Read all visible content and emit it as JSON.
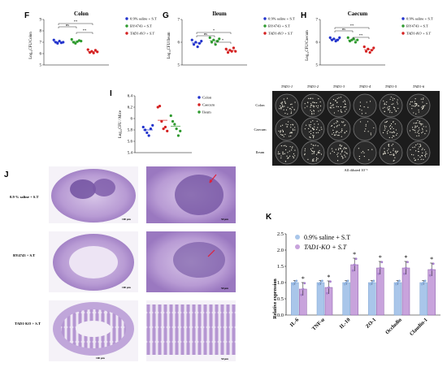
{
  "panels": {
    "F": {
      "label": "F",
      "title": "Colon",
      "ylabel": "Log₁₀CFU/Colon"
    },
    "G": {
      "label": "G",
      "title": "Ileum",
      "ylabel": "Log₁₀CFU/Ileum"
    },
    "H": {
      "label": "H",
      "title": "Caecum",
      "ylabel": "Log₁₀CFU/Caecum"
    },
    "I": {
      "label": "I",
      "ylabel": "Log₁₀CFU / Mice"
    },
    "J": {
      "label": "J"
    },
    "K": {
      "label": "K",
      "ylabel": "Relative expression"
    }
  },
  "legend_groups": [
    "0.9% saline + S.T",
    "BY4743 + S.T",
    "TAD1-KO + S.T"
  ],
  "legend_tissues": [
    "Colon",
    "Caecum",
    "Ileum"
  ],
  "legend_k": [
    "0.9% saline + S.T",
    "TAD1-KO + S.T"
  ],
  "significance": {
    "ns": "ns",
    "star": "*",
    "star2": "**"
  },
  "plates": {
    "columns": [
      "TAD1-1",
      "TAD1-2",
      "TAD1-3",
      "TAD1-4",
      "TAD1-5",
      "TAD1-6"
    ],
    "rows": [
      "Colon",
      "Caecum",
      "Ileum"
    ],
    "caption": "All diluted 10⁻¹"
  },
  "histology": {
    "rows": [
      "0.9 % saline + S.T",
      "BY4743 + S.T",
      "TAD1-KO + S.T"
    ],
    "scale_left": "100 μm",
    "scale_right": "50 μm"
  },
  "colors": {
    "saline": "#2233cc",
    "by4743": "#2e9a2e",
    "ko": "#d42020",
    "bar_saline": "#a9c6ea",
    "bar_ko": "#c8a3dc",
    "tissue": "#a98bc9"
  },
  "chart_data": [
    {
      "panel": "F",
      "type": "scatter",
      "title": "Colon",
      "ylabel": "Log₁₀CFU/Colon",
      "ylim": [
        5,
        9
      ],
      "yticks": [
        5,
        6,
        7,
        8,
        9
      ],
      "series": [
        {
          "name": "0.9% saline + S.T",
          "values": [
            7.2,
            7.0,
            6.9,
            7.1,
            6.95,
            7.0
          ]
        },
        {
          "name": "BY4743 + S.T",
          "values": [
            7.25,
            7.0,
            6.9,
            7.05,
            7.15,
            7.1
          ]
        },
        {
          "name": "TAD1-KO + S.T",
          "values": [
            6.35,
            6.1,
            6.2,
            6.05,
            6.3,
            6.15
          ]
        }
      ]
    },
    {
      "panel": "G",
      "type": "scatter",
      "title": "Ileum",
      "ylabel": "Log₁₀CFU/Ileum",
      "ylim": [
        5,
        7
      ],
      "yticks": [
        5,
        6,
        7
      ],
      "series": [
        {
          "name": "0.9% saline + S.T",
          "values": [
            6.1,
            5.9,
            6.0,
            5.8,
            5.95,
            6.05
          ]
        },
        {
          "name": "BY4743 + S.T",
          "values": [
            6.2,
            6.0,
            6.1,
            5.9,
            6.05,
            6.15
          ]
        },
        {
          "name": "TAD1-KO + S.T",
          "values": [
            5.7,
            5.55,
            5.65,
            5.6,
            5.75,
            5.6
          ]
        }
      ]
    },
    {
      "panel": "H",
      "type": "scatter",
      "title": "Caecum",
      "ylabel": "Log₁₀CFU/Caecum",
      "ylim": [
        5,
        7
      ],
      "yticks": [
        5,
        6,
        7
      ],
      "series": [
        {
          "name": "0.9% saline + S.T",
          "values": [
            6.2,
            6.1,
            6.15,
            6.05,
            6.1,
            6.2
          ]
        },
        {
          "name": "BY4743 + S.T",
          "values": [
            6.2,
            6.05,
            6.1,
            6.15,
            6.0,
            6.1
          ]
        },
        {
          "name": "TAD1-KO + S.T",
          "values": [
            5.8,
            5.6,
            5.7,
            5.55,
            5.65,
            5.75
          ]
        }
      ]
    },
    {
      "panel": "I",
      "type": "scatter",
      "ylabel": "Log₁₀CFU / Mice",
      "ylim": [
        5.4,
        6.4
      ],
      "yticks": [
        5.4,
        5.6,
        5.8,
        6.0,
        6.2,
        6.4
      ],
      "series": [
        {
          "name": "Colon",
          "values": [
            5.85,
            5.8,
            5.75,
            5.7,
            5.82,
            5.88
          ]
        },
        {
          "name": "Caecum",
          "values": [
            6.2,
            6.22,
            5.95,
            5.82,
            5.85,
            5.78
          ]
        },
        {
          "name": "Ileum",
          "values": [
            6.05,
            5.95,
            5.9,
            5.82,
            5.7,
            5.78
          ]
        }
      ]
    },
    {
      "panel": "K",
      "type": "bar",
      "ylabel": "Relative expression",
      "ylim": [
        0,
        2.5
      ],
      "yticks": [
        0.0,
        0.5,
        1.0,
        1.5,
        2.0,
        2.5
      ],
      "categories": [
        "IL-6",
        "TNF-α",
        "IL-10",
        "ZO-1",
        "Occludin",
        "Claudin-1"
      ],
      "series": [
        {
          "name": "0.9% saline + S.T",
          "values": [
            1.0,
            1.0,
            1.0,
            1.0,
            1.0,
            1.0
          ]
        },
        {
          "name": "TAD1-KO + S.T",
          "values": [
            0.8,
            0.85,
            1.55,
            1.45,
            1.45,
            1.4
          ]
        }
      ]
    }
  ]
}
